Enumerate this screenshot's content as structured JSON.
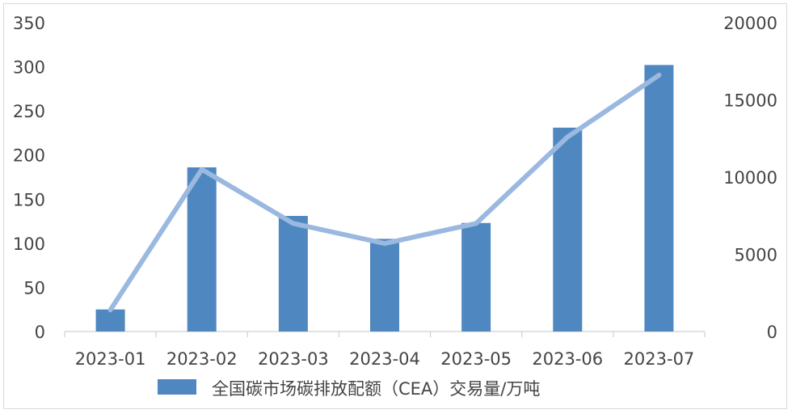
{
  "chart_data": {
    "type": "bar",
    "categories": [
      "2023-01",
      "2023-02",
      "2023-03",
      "2023-04",
      "2023-05",
      "2023-06",
      "2023-07"
    ],
    "series": [
      {
        "name": "全国碳市场碳排放配额（CEA）交易量/万吨",
        "type": "bar",
        "axis": "left",
        "color": "#4f88c0",
        "values": [
          25,
          186,
          131,
          105,
          123,
          231,
          302
        ]
      },
      {
        "type": "line",
        "axis": "right",
        "color": "#9ab8e0",
        "values": [
          1400,
          10500,
          7000,
          5700,
          7000,
          12600,
          16600
        ]
      }
    ],
    "y_left": {
      "ylim": [
        0,
        350
      ],
      "ticks": [
        "0",
        "50",
        "100",
        "150",
        "200",
        "250",
        "300",
        "350"
      ]
    },
    "y_right": {
      "ylim": [
        0,
        20000
      ],
      "ticks": [
        "0",
        "5000",
        "10000",
        "15000",
        "20000"
      ]
    },
    "grid": false,
    "legend_position": "bottom"
  }
}
